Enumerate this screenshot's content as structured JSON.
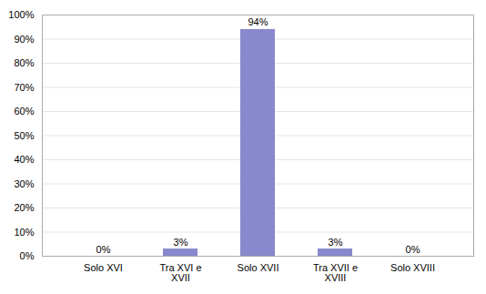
{
  "chart_data": {
    "type": "bar",
    "categories": [
      "Solo XVI",
      "Tra XVI e\nXVII",
      "Solo XVII",
      "Tra XVII e\nXVIII",
      "Solo XVIII"
    ],
    "values": [
      0,
      3,
      94,
      3,
      0
    ],
    "value_labels": [
      "0%",
      "3%",
      "94%",
      "3%",
      "0%"
    ],
    "color": "#8888cc",
    "ylim": [
      0,
      100
    ],
    "yticks": [
      {
        "value": 0,
        "label": "0%"
      },
      {
        "value": 10,
        "label": "10%"
      },
      {
        "value": 20,
        "label": "20%"
      },
      {
        "value": 30,
        "label": "30%"
      },
      {
        "value": 40,
        "label": "40%"
      },
      {
        "value": 50,
        "label": "50%"
      },
      {
        "value": 60,
        "label": "60%"
      },
      {
        "value": 70,
        "label": "70%"
      },
      {
        "value": 80,
        "label": "80%"
      },
      {
        "value": 90,
        "label": "90%"
      },
      {
        "value": 100,
        "label": "100%"
      }
    ],
    "grid": true
  }
}
